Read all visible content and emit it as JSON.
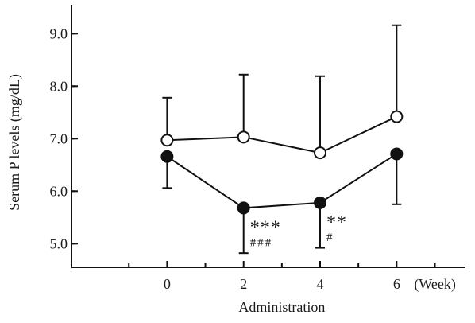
{
  "chart_data": {
    "type": "line",
    "xlabel": "Administration",
    "ylabel": "Serum P levels (mg/dL)",
    "x_unit_label": "(Week)",
    "x": [
      0,
      2,
      4,
      6
    ],
    "xlim": [
      -2.5,
      7.8
    ],
    "ylim": [
      4.55,
      9.55
    ],
    "x_ticks": [
      0,
      2,
      4,
      6
    ],
    "y_ticks": [
      5.0,
      6.0,
      7.0,
      8.0,
      9.0
    ],
    "x_tick_labels": [
      "0",
      "2",
      "4",
      "6"
    ],
    "y_tick_labels": [
      "5.0",
      "6.0",
      "7.0",
      "8.0",
      "9.0"
    ],
    "grid": false,
    "series": [
      {
        "marker": "open-circle",
        "color": "#111111",
        "values": [
          6.97,
          7.03,
          6.73,
          7.42
        ],
        "error_upper": [
          7.78,
          8.22,
          8.19,
          9.16
        ],
        "error_direction": "up"
      },
      {
        "marker": "filled-circle",
        "color": "#111111",
        "values": [
          6.66,
          5.68,
          5.78,
          6.71
        ],
        "error_lower": [
          6.06,
          4.82,
          4.92,
          5.75
        ],
        "error_direction": "down"
      }
    ],
    "annotations": [
      {
        "x": 2,
        "text": "***",
        "style": "big"
      },
      {
        "x": 2,
        "text": "###",
        "style": "small"
      },
      {
        "x": 4,
        "text": "**",
        "style": "big"
      },
      {
        "x": 4,
        "text": "#",
        "style": "small"
      }
    ]
  }
}
